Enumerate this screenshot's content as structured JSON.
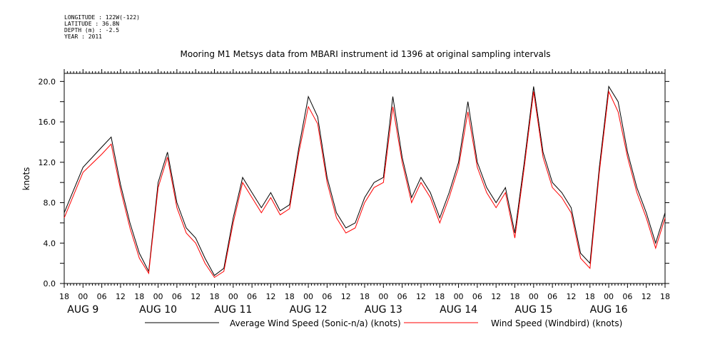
{
  "header": {
    "longitude": "LONGITUDE : 122W(-122)",
    "latitude": "LATITUDE : 36.8N",
    "depth": "DEPTH (m) : -2.5",
    "year": "YEAR : 2011"
  },
  "chart_data": {
    "type": "line",
    "title": "Mooring M1 Metsys data from MBARI instrument id 1396 at original sampling intervals",
    "xlabel": "",
    "ylabel": "knots",
    "ylim": [
      0,
      20.8
    ],
    "yticks": [
      "0.0",
      "4.0",
      "8.0",
      "12.0",
      "16.0",
      "20.0"
    ],
    "grid": false,
    "legend_position": "bottom",
    "x_start": "2011-08-08 18:00",
    "x_end": "2011-08-16 18:00",
    "xtick_hours": [
      "18",
      "00",
      "06",
      "12",
      "18",
      "00",
      "06",
      "12",
      "18",
      "00",
      "06",
      "12",
      "18",
      "00",
      "06",
      "12",
      "18",
      "00",
      "06",
      "12",
      "18",
      "00",
      "06",
      "12",
      "18",
      "00",
      "06",
      "12",
      "18",
      "00",
      "06",
      "12",
      "18"
    ],
    "date_labels": [
      "AUG  9",
      "AUG 10",
      "AUG 11",
      "AUG 12",
      "AUG 13",
      "AUG 14",
      "AUG 15",
      "AUG 16"
    ],
    "x": [
      "2011-08-08 18:00",
      "2011-08-09 00:00",
      "2011-08-09 06:00",
      "2011-08-09 09:00",
      "2011-08-09 12:00",
      "2011-08-09 15:00",
      "2011-08-09 18:00",
      "2011-08-09 21:00",
      "2011-08-10 00:00",
      "2011-08-10 03:00",
      "2011-08-10 06:00",
      "2011-08-10 09:00",
      "2011-08-10 12:00",
      "2011-08-10 15:00",
      "2011-08-10 18:00",
      "2011-08-10 21:00",
      "2011-08-11 00:00",
      "2011-08-11 03:00",
      "2011-08-11 06:00",
      "2011-08-11 09:00",
      "2011-08-11 12:00",
      "2011-08-11 15:00",
      "2011-08-11 18:00",
      "2011-08-11 21:00",
      "2011-08-12 00:00",
      "2011-08-12 03:00",
      "2011-08-12 06:00",
      "2011-08-12 09:00",
      "2011-08-12 12:00",
      "2011-08-12 15:00",
      "2011-08-12 18:00",
      "2011-08-12 21:00",
      "2011-08-13 00:00",
      "2011-08-13 03:00",
      "2011-08-13 06:00",
      "2011-08-13 09:00",
      "2011-08-13 12:00",
      "2011-08-13 15:00",
      "2011-08-13 18:00",
      "2011-08-13 21:00",
      "2011-08-14 00:00",
      "2011-08-14 03:00",
      "2011-08-14 06:00",
      "2011-08-14 09:00",
      "2011-08-14 12:00",
      "2011-08-14 15:00",
      "2011-08-14 18:00",
      "2011-08-14 21:00",
      "2011-08-15 00:00",
      "2011-08-15 03:00",
      "2011-08-15 06:00",
      "2011-08-15 09:00",
      "2011-08-15 12:00",
      "2011-08-15 15:00",
      "2011-08-15 18:00",
      "2011-08-15 21:00",
      "2011-08-16 00:00",
      "2011-08-16 03:00",
      "2011-08-16 06:00",
      "2011-08-16 09:00",
      "2011-08-16 12:00",
      "2011-08-16 15:00",
      "2011-08-16 18:00"
    ],
    "series": [
      {
        "name": "Average Wind Speed (Sonic-n/a) (knots)",
        "color": "#000000",
        "values": [
          7.0,
          11.5,
          13.5,
          14.5,
          9.8,
          6.0,
          3.0,
          1.2,
          10.0,
          13.0,
          8.0,
          5.5,
          4.5,
          2.5,
          0.8,
          1.5,
          6.5,
          10.5,
          9.0,
          7.5,
          9.0,
          7.2,
          7.8,
          13.5,
          18.5,
          16.5,
          10.5,
          7.0,
          5.5,
          6.0,
          8.5,
          10.0,
          10.5,
          18.5,
          12.5,
          8.5,
          10.5,
          9.0,
          6.5,
          9.0,
          12.0,
          18.0,
          12.0,
          9.5,
          8.0,
          9.5,
          5.0,
          12.0,
          19.5,
          13.0,
          10.0,
          9.0,
          7.5,
          3.0,
          2.0,
          11.5,
          19.5,
          18.0,
          13.0,
          9.5,
          7.0,
          4.0,
          7.0
        ]
      },
      {
        "name": "Wind Speed (Windbird) (knots)",
        "color": "#ff0000",
        "values": [
          6.5,
          11.0,
          12.8,
          13.8,
          9.3,
          5.5,
          2.5,
          1.0,
          9.5,
          12.5,
          7.5,
          5.0,
          4.0,
          2.0,
          0.6,
          1.2,
          6.0,
          10.0,
          8.5,
          7.0,
          8.5,
          6.8,
          7.4,
          13.0,
          17.5,
          15.8,
          10.0,
          6.5,
          5.0,
          5.5,
          8.0,
          9.5,
          10.0,
          17.5,
          12.0,
          8.0,
          10.0,
          8.5,
          6.0,
          8.5,
          11.5,
          17.0,
          11.5,
          9.0,
          7.5,
          9.0,
          4.5,
          11.5,
          19.0,
          12.5,
          9.5,
          8.5,
          7.0,
          2.5,
          1.5,
          11.0,
          19.0,
          17.0,
          12.5,
          9.0,
          6.5,
          3.5,
          6.5
        ]
      }
    ]
  }
}
